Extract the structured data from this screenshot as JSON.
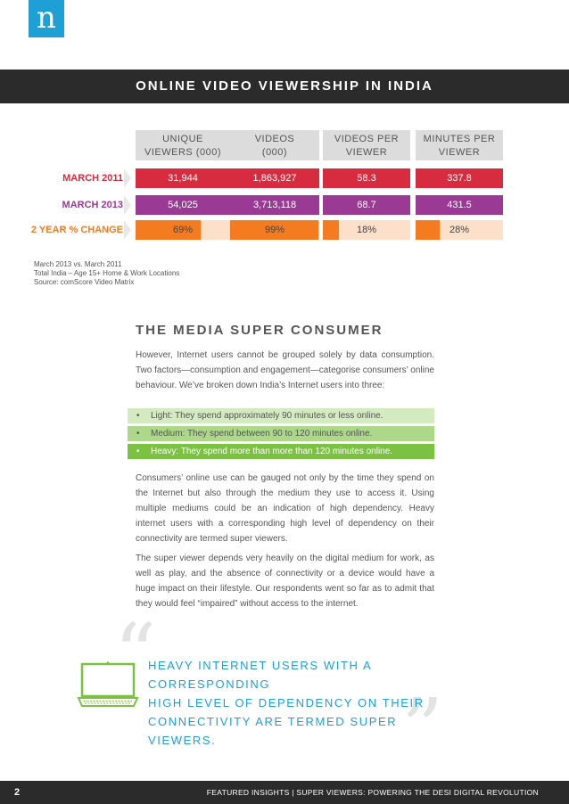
{
  "logo": {
    "letter": "n"
  },
  "banner": {
    "title": "ONLINE VIDEO VIEWERSHIP IN INDIA"
  },
  "table": {
    "columns": [
      {
        "line1": "UNIQUE",
        "line2": "VIEWERS (000)"
      },
      {
        "line1": "VIDEOS",
        "line2": "(000)"
      },
      {
        "line1": "VIDEOS PER",
        "line2": "VIEWER"
      },
      {
        "line1": "MINUTES PER",
        "line2": "VIEWER"
      }
    ],
    "rows": [
      {
        "label": "MARCH 2011",
        "values": [
          "31,944",
          "1,863,927",
          "58.3",
          "337.8"
        ]
      },
      {
        "label": "MARCH 2013",
        "values": [
          "54,025",
          "3,713,118",
          "68.7",
          "431.5"
        ]
      },
      {
        "label": "2 YEAR % CHANGE",
        "values": [
          "69%",
          "99%",
          "18%",
          "28%"
        ],
        "fill_fractions": [
          0.69,
          0.99,
          0.18,
          0.28
        ]
      }
    ],
    "colors": {
      "march_2011": "#d72b3f",
      "march_2013": "#9b3a94",
      "change": "#f47b20",
      "change_bg": "#fde0c9"
    }
  },
  "notes": {
    "line1": "March 2013 vs. March 2011",
    "line2": "Total India – Age 15+ Home & Work Locations",
    "line3": "Source: comScore Video Matrix"
  },
  "section": {
    "title": "THE MEDIA SUPER CONSUMER",
    "intro": "However, Internet users cannot be grouped solely by data consumption. Two factors—consumption and engagement—categorise consumers’ online behaviour. We’ve broken down India’s Internet users into three:",
    "bullets": [
      "Light: They spend approximately 90 minutes or less online.",
      "Medium: They spend between 90 to 120 minutes online.",
      "Heavy: They spend more than more than 120 minutes online."
    ],
    "para2": "Consumers’ online use can be gauged not only by the time they spend on the Internet but also through the medium they use to access it. Using multiple mediums could be an indication of high dependency. Heavy internet users with a corresponding high level of dependency on their connectivity are termed super viewers.",
    "para3": "The super viewer depends very heavily on the digital medium for work, as well as play, and the absence of connectivity or a device would have a huge impact on their lifestyle. Our respondents went so far as to admit that they would feel “impaired” without access to the internet."
  },
  "pullquote": {
    "open_mark": "“",
    "close_mark": "”",
    "line1": "HEAVY INTERNET USERS WITH A CORRESPONDING",
    "line2": "HIGH LEVEL OF DEPENDENCY ON THEIR",
    "line3": "CONNECTIVITY ARE TERMED SUPER VIEWERS.",
    "icon": "laptop-icon"
  },
  "footer": {
    "page": "2",
    "text": "FEATURED INSIGHTS | SUPER VIEWERS: POWERING THE DESI DIGITAL REVOLUTION"
  }
}
